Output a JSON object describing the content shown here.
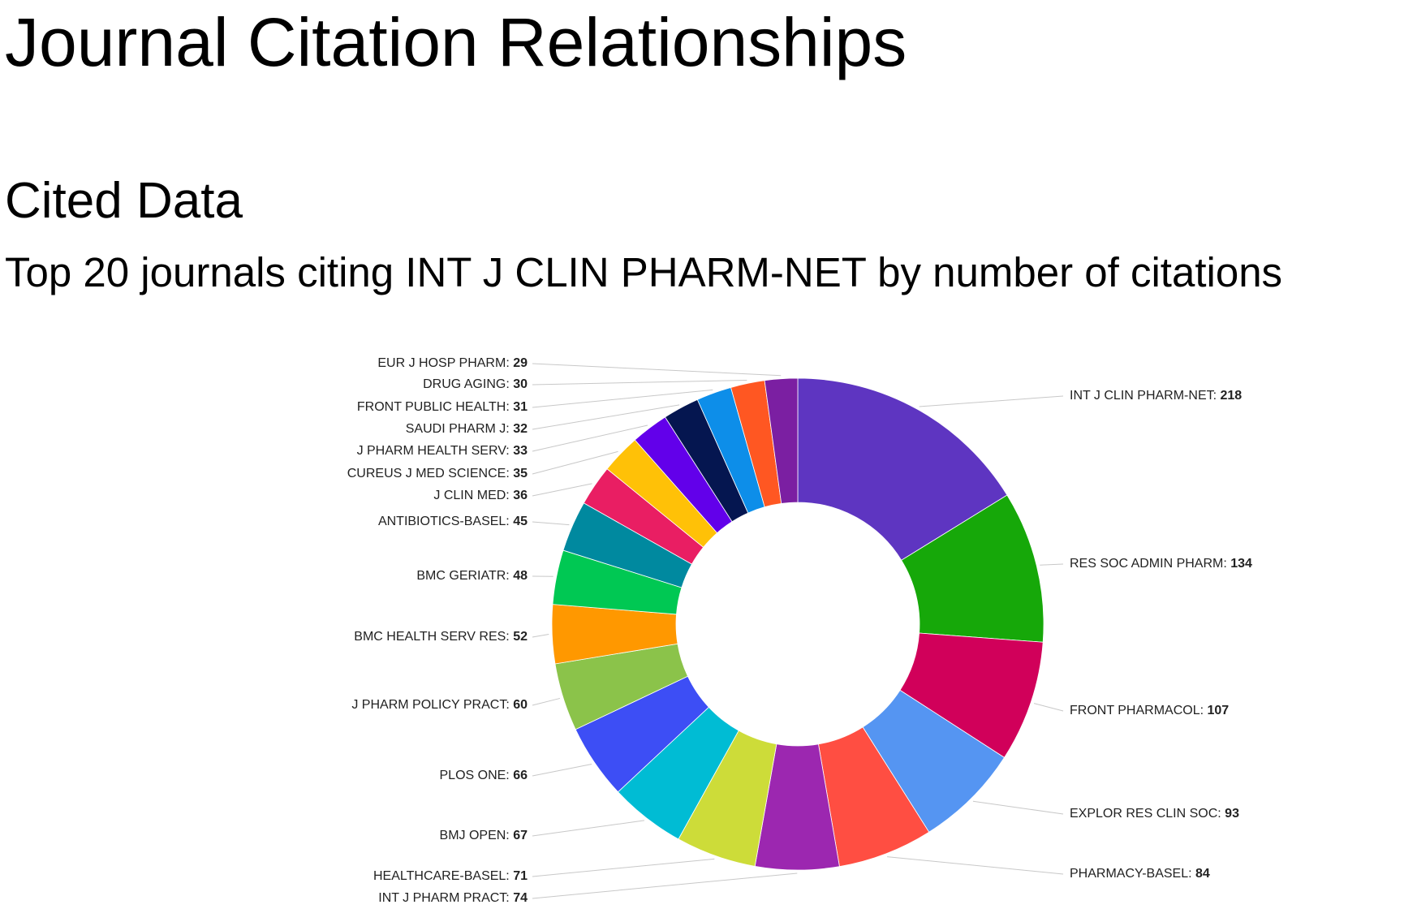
{
  "header": {
    "title": "Journal Citation Relationships",
    "section": "Cited Data",
    "subtitle": "Top 20 journals citing INT J CLIN PHARM-NET by number of citations"
  },
  "chart_data": {
    "type": "pie",
    "style": "donut",
    "title": "Top 20 journals citing INT J CLIN PHARM-NET by number of citations",
    "order": "clockwise from 12 o'clock",
    "slices": [
      {
        "label": "INT J CLIN PHARM-NET",
        "value": 218,
        "color": "#5E35C1"
      },
      {
        "label": "RES SOC ADMIN PHARM",
        "value": 134,
        "color": "#16A809"
      },
      {
        "label": "FRONT PHARMACOL",
        "value": 107,
        "color": "#D1005A"
      },
      {
        "label": "EXPLOR RES CLIN SOC",
        "value": 93,
        "color": "#5595F2"
      },
      {
        "label": "PHARMACY-BASEL",
        "value": 84,
        "color": "#FF4E42"
      },
      {
        "label": "INT J PHARM PRACT",
        "value": 74,
        "color": "#9C27B0"
      },
      {
        "label": "HEALTHCARE-BASEL",
        "value": 71,
        "color": "#CDDC39"
      },
      {
        "label": "BMJ OPEN",
        "value": 67,
        "color": "#00BCD4"
      },
      {
        "label": "PLOS ONE",
        "value": 66,
        "color": "#3D4EF5"
      },
      {
        "label": "J PHARM POLICY PRACT",
        "value": 60,
        "color": "#8BC34A"
      },
      {
        "label": "BMC HEALTH SERV RES",
        "value": 52,
        "color": "#FF9800"
      },
      {
        "label": "BMC GERIATR",
        "value": 48,
        "color": "#00C853"
      },
      {
        "label": "ANTIBIOTICS-BASEL",
        "value": 45,
        "color": "#00899F"
      },
      {
        "label": "J CLIN MED",
        "value": 36,
        "color": "#E91E63"
      },
      {
        "label": "CUREUS J MED SCIENCE",
        "value": 35,
        "color": "#FFC107"
      },
      {
        "label": "J PHARM HEALTH SERV",
        "value": 33,
        "color": "#6200EA"
      },
      {
        "label": "SAUDI PHARM J",
        "value": 32,
        "color": "#051650"
      },
      {
        "label": "FRONT PUBLIC HEALTH",
        "value": 31,
        "color": "#0D8EE9"
      },
      {
        "label": "DRUG AGING",
        "value": 30,
        "color": "#FF5722"
      },
      {
        "label": "EUR J HOSP PHARM",
        "value": 29,
        "color": "#7B1FA2"
      }
    ],
    "legend": "callout labels with leader lines (right side and left side)"
  }
}
